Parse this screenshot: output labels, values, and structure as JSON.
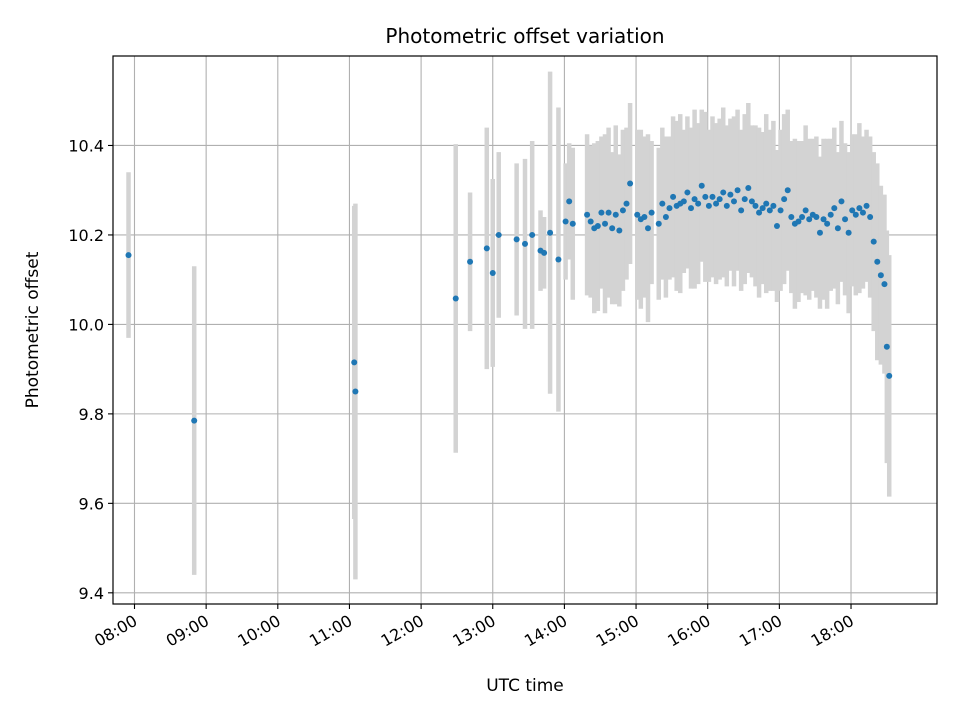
{
  "chart_data": {
    "type": "scatter",
    "title": "Photometric offset variation",
    "xlabel": "UTC time",
    "ylabel": "Photometric offset",
    "xlim": [
      "07:42",
      "19:12"
    ],
    "ylim": [
      9.375,
      10.6
    ],
    "x_ticks": [
      "08:00",
      "09:00",
      "10:00",
      "11:00",
      "12:00",
      "13:00",
      "14:00",
      "15:00",
      "16:00",
      "17:00",
      "18:00"
    ],
    "y_ticks": [
      "9.4",
      "9.6",
      "9.8",
      "10.0",
      "10.2",
      "10.4"
    ],
    "grid": true,
    "colors": {
      "point": "#1f77b4",
      "errorbar": "#d3d3d3",
      "grid": "#b0b0b0"
    },
    "x": [
      "07:55",
      "08:50",
      "11:04",
      "11:05",
      "12:29",
      "12:41",
      "12:55",
      "13:00",
      "13:05",
      "13:20",
      "13:27",
      "13:33",
      "13:40",
      "13:43",
      "13:48",
      "13:55",
      "14:01",
      "14:04",
      "14:07",
      "14:19",
      "14:22",
      "14:25",
      "14:28",
      "14:31",
      "14:34",
      "14:37",
      "14:40",
      "14:43",
      "14:46",
      "14:49",
      "14:52",
      "14:55",
      "15:01",
      "15:04",
      "15:07",
      "15:10",
      "15:13",
      "15:19",
      "15:22",
      "15:25",
      "15:28",
      "15:31",
      "15:34",
      "15:37",
      "15:40",
      "15:43",
      "15:46",
      "15:49",
      "15:52",
      "15:55",
      "15:58",
      "16:01",
      "16:04",
      "16:07",
      "16:10",
      "16:13",
      "16:16",
      "16:19",
      "16:22",
      "16:25",
      "16:28",
      "16:31",
      "16:34",
      "16:37",
      "16:40",
      "16:43",
      "16:46",
      "16:49",
      "16:52",
      "16:55",
      "16:58",
      "17:01",
      "17:04",
      "17:07",
      "17:10",
      "17:13",
      "17:16",
      "17:19",
      "17:22",
      "17:25",
      "17:28",
      "17:31",
      "17:34",
      "17:37",
      "17:40",
      "17:43",
      "17:46",
      "17:49",
      "17:52",
      "17:55",
      "17:58",
      "18:01",
      "18:04",
      "18:07",
      "18:10",
      "18:13",
      "18:16",
      "18:19",
      "18:22",
      "18:25",
      "18:28",
      "18:30",
      "18:32"
    ],
    "y": [
      10.155,
      9.785,
      9.915,
      9.85,
      10.058,
      10.14,
      10.17,
      10.115,
      10.2,
      10.19,
      10.18,
      10.2,
      10.165,
      10.16,
      10.205,
      10.145,
      10.23,
      10.275,
      10.225,
      10.245,
      10.23,
      10.215,
      10.22,
      10.25,
      10.225,
      10.25,
      10.215,
      10.245,
      10.21,
      10.255,
      10.27,
      10.315,
      10.245,
      10.235,
      10.24,
      10.215,
      10.25,
      10.225,
      10.27,
      10.24,
      10.26,
      10.285,
      10.265,
      10.27,
      10.275,
      10.295,
      10.26,
      10.28,
      10.27,
      10.31,
      10.285,
      10.265,
      10.285,
      10.27,
      10.28,
      10.295,
      10.265,
      10.29,
      10.275,
      10.3,
      10.255,
      10.28,
      10.305,
      10.275,
      10.265,
      10.25,
      10.26,
      10.27,
      10.255,
      10.265,
      10.22,
      10.255,
      10.28,
      10.3,
      10.24,
      10.225,
      10.23,
      10.24,
      10.255,
      10.235,
      10.245,
      10.24,
      10.205,
      10.235,
      10.225,
      10.245,
      10.26,
      10.215,
      10.275,
      10.235,
      10.205,
      10.255,
      10.245,
      10.26,
      10.25,
      10.265,
      10.24,
      10.185,
      10.14,
      10.11,
      10.09,
      9.95,
      9.885
    ],
    "yerr": [
      0.185,
      0.345,
      0.35,
      0.42,
      0.345,
      0.155,
      0.27,
      0.21,
      0.185,
      0.17,
      0.19,
      0.21,
      0.09,
      0.08,
      0.36,
      0.34,
      0.13,
      0.13,
      0.17,
      0.18,
      0.17,
      0.19,
      0.19,
      0.17,
      0.2,
      0.19,
      0.17,
      0.2,
      0.17,
      0.18,
      0.17,
      0.18,
      0.19,
      0.2,
      0.18,
      0.21,
      0.16,
      0.17,
      0.17,
      0.18,
      0.16,
      0.18,
      0.19,
      0.2,
      0.16,
      0.17,
      0.18,
      0.2,
      0.18,
      0.17,
      0.19,
      0.17,
      0.18,
      0.18,
      0.18,
      0.19,
      0.18,
      0.17,
      0.19,
      0.18,
      0.18,
      0.19,
      0.19,
      0.17,
      0.18,
      0.19,
      0.17,
      0.2,
      0.18,
      0.19,
      0.17,
      0.18,
      0.19,
      0.18,
      0.17,
      0.19,
      0.18,
      0.17,
      0.19,
      0.18,
      0.17,
      0.18,
      0.17,
      0.18,
      0.19,
      0.17,
      0.18,
      0.17,
      0.18,
      0.17,
      0.18,
      0.17,
      0.18,
      0.19,
      0.17,
      0.17,
      0.18,
      0.2,
      0.22,
      0.2,
      0.2,
      0.26,
      0.27
    ]
  }
}
